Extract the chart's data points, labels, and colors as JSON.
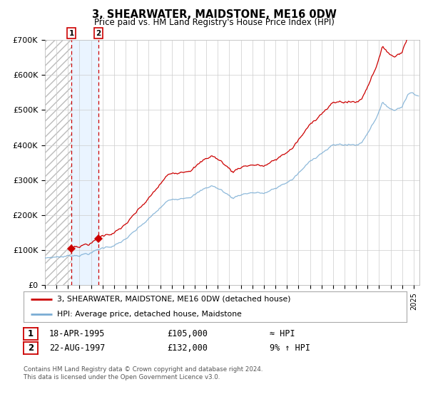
{
  "title": "3, SHEARWATER, MAIDSTONE, ME16 0DW",
  "subtitle": "Price paid vs. HM Land Registry's House Price Index (HPI)",
  "ylim": [
    0,
    700000
  ],
  "yticks": [
    0,
    100000,
    200000,
    300000,
    400000,
    500000,
    600000,
    700000
  ],
  "ytick_labels": [
    "£0",
    "£100K",
    "£200K",
    "£300K",
    "£400K",
    "£500K",
    "£600K",
    "£700K"
  ],
  "xlim_start": 1993.0,
  "xlim_end": 2025.5,
  "sale1_date": 1995.29,
  "sale1_price": 105000,
  "sale2_date": 1997.64,
  "sale2_price": 132000,
  "red_line_color": "#cc0000",
  "blue_line_color": "#7aadd4",
  "shade_color": "#ddeeff",
  "grid_color": "#cccccc",
  "background_color": "#ffffff",
  "legend1_text": "3, SHEARWATER, MAIDSTONE, ME16 0DW (detached house)",
  "legend2_text": "HPI: Average price, detached house, Maidstone",
  "footer1": "Contains HM Land Registry data © Crown copyright and database right 2024.",
  "footer2": "This data is licensed under the Open Government Licence v3.0.",
  "table_row1": [
    "1",
    "18-APR-1995",
    "£105,000",
    "≈ HPI"
  ],
  "table_row2": [
    "2",
    "22-AUG-1997",
    "£132,000",
    "9% ↑ HPI"
  ]
}
